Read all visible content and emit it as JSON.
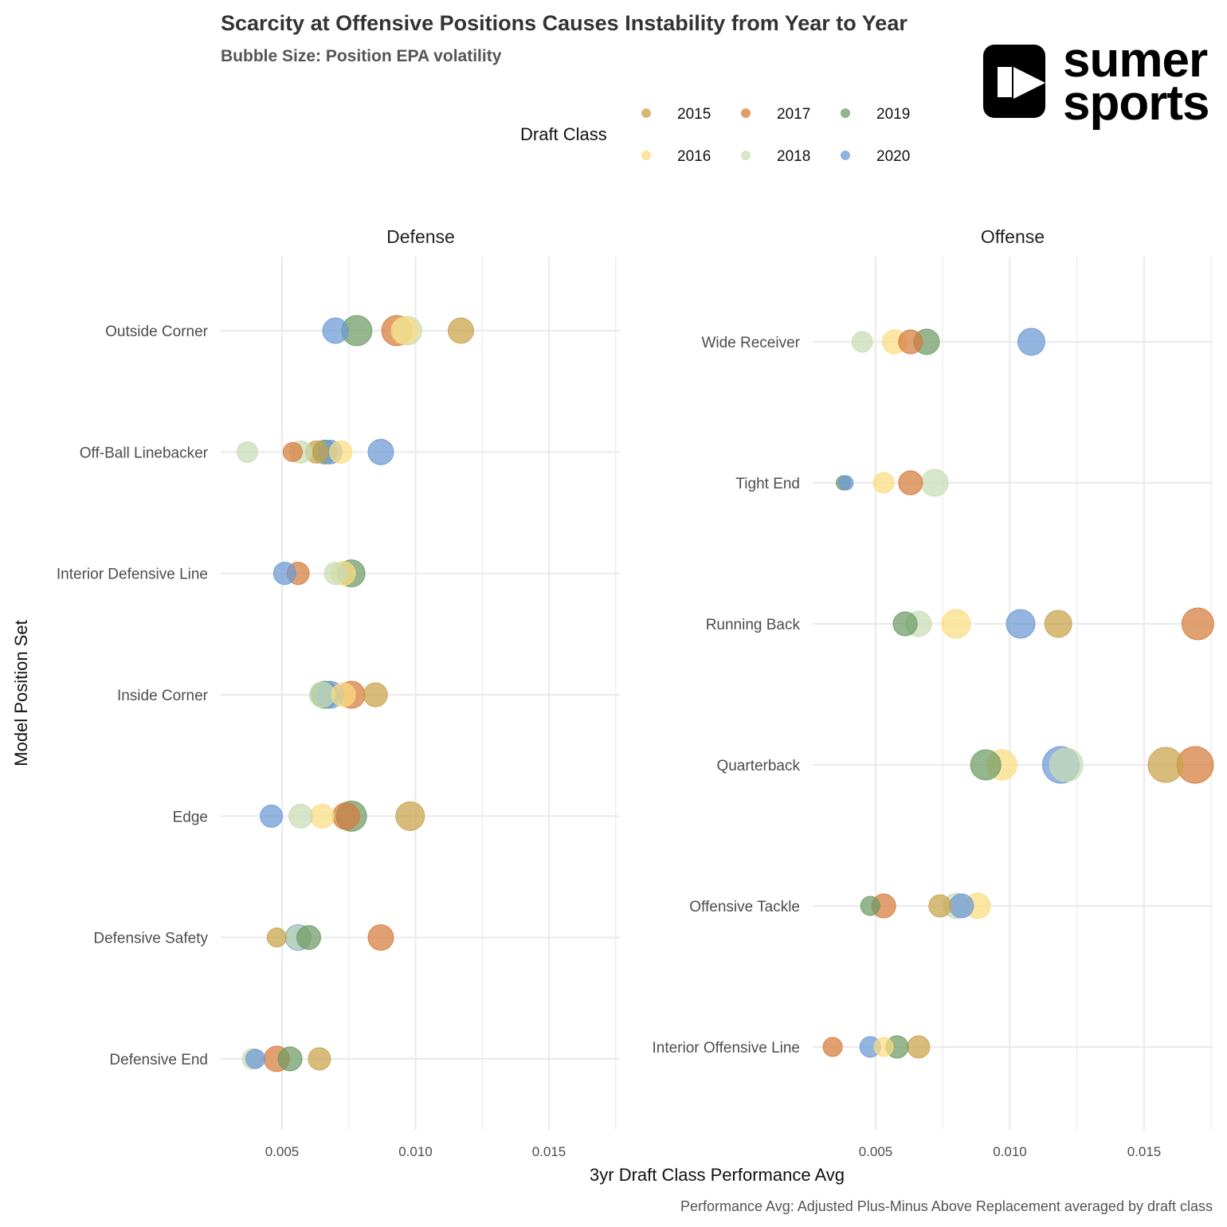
{
  "chart_data": {
    "type": "scatter",
    "title": "Scarcity at Offensive Positions Causes Instability from Year to Year",
    "subtitle": "Bubble Size: Position EPA volatility",
    "xlabel": "3yr Draft Class Performance Avg",
    "ylabel": "Model Position Set",
    "caption": "Performance Avg: Adjusted Plus-Minus Above Replacement averaged by draft class",
    "legend": {
      "title": "Draft Class",
      "placement": "top",
      "entries": [
        {
          "label": "2015",
          "color": "#C8A24A"
        },
        {
          "label": "2016",
          "color": "#FBDC7F"
        },
        {
          "label": "2017",
          "color": "#D67B3A"
        },
        {
          "label": "2018",
          "color": "#C8DDB4"
        },
        {
          "label": "2019",
          "color": "#6E9A64"
        },
        {
          "label": "2020",
          "color": "#6C98D6"
        }
      ]
    },
    "logo_text": [
      "sumer",
      "sports"
    ],
    "grid": true,
    "xlim": [
      0.0028,
      0.0177
    ],
    "x_ticks": [
      "0.005",
      "0.010",
      "0.015"
    ],
    "panels": [
      {
        "name": "Defense",
        "categories": [
          "Outside Corner",
          "Off-Ball Linebacker",
          "Interior Defensive Line",
          "Inside Corner",
          "Edge",
          "Defensive Safety",
          "Defensive End"
        ],
        "points": [
          {
            "cat": "Outside Corner",
            "year": "2015",
            "x": 0.0117,
            "size": 0.55
          },
          {
            "cat": "Outside Corner",
            "year": "2016",
            "x": 0.0096,
            "size": 0.6
          },
          {
            "cat": "Outside Corner",
            "year": "2017",
            "x": 0.0093,
            "size": 0.7
          },
          {
            "cat": "Outside Corner",
            "year": "2018",
            "x": 0.0097,
            "size": 0.65
          },
          {
            "cat": "Outside Corner",
            "year": "2019",
            "x": 0.0078,
            "size": 0.7
          },
          {
            "cat": "Outside Corner",
            "year": "2020",
            "x": 0.007,
            "size": 0.55
          },
          {
            "cat": "Off-Ball Linebacker",
            "year": "2015",
            "x": 0.0063,
            "size": 0.45
          },
          {
            "cat": "Off-Ball Linebacker",
            "year": "2016",
            "x": 0.0072,
            "size": 0.45
          },
          {
            "cat": "Off-Ball Linebacker",
            "year": "2017",
            "x": 0.0054,
            "size": 0.35
          },
          {
            "cat": "Off-Ball Linebacker",
            "year": "2018",
            "x": 0.0057,
            "size": 0.45
          },
          {
            "cat": "Off-Ball Linebacker",
            "year": "2018",
            "x": 0.0037,
            "size": 0.4
          },
          {
            "cat": "Off-Ball Linebacker",
            "year": "2019",
            "x": 0.0066,
            "size": 0.5
          },
          {
            "cat": "Off-Ball Linebacker",
            "year": "2020",
            "x": 0.0068,
            "size": 0.5
          },
          {
            "cat": "Off-Ball Linebacker",
            "year": "2020",
            "x": 0.0087,
            "size": 0.55
          },
          {
            "cat": "Interior Defensive Line",
            "year": "2016",
            "x": 0.0073,
            "size": 0.5
          },
          {
            "cat": "Interior Defensive Line",
            "year": "2017",
            "x": 0.0056,
            "size": 0.45
          },
          {
            "cat": "Interior Defensive Line",
            "year": "2018",
            "x": 0.007,
            "size": 0.45
          },
          {
            "cat": "Interior Defensive Line",
            "year": "2019",
            "x": 0.0076,
            "size": 0.6
          },
          {
            "cat": "Interior Defensive Line",
            "year": "2020",
            "x": 0.0051,
            "size": 0.45
          },
          {
            "cat": "Inside Corner",
            "year": "2015",
            "x": 0.0085,
            "size": 0.5
          },
          {
            "cat": "Inside Corner",
            "year": "2016",
            "x": 0.0073,
            "size": 0.5
          },
          {
            "cat": "Inside Corner",
            "year": "2017",
            "x": 0.0076,
            "size": 0.6
          },
          {
            "cat": "Inside Corner",
            "year": "2018",
            "x": 0.0065,
            "size": 0.55
          },
          {
            "cat": "Inside Corner",
            "year": "2019",
            "x": 0.0066,
            "size": 0.6
          },
          {
            "cat": "Inside Corner",
            "year": "2020",
            "x": 0.0068,
            "size": 0.6
          },
          {
            "cat": "Edge",
            "year": "2015",
            "x": 0.0098,
            "size": 0.65
          },
          {
            "cat": "Edge",
            "year": "2016",
            "x": 0.0065,
            "size": 0.5
          },
          {
            "cat": "Edge",
            "year": "2017",
            "x": 0.0074,
            "size": 0.6
          },
          {
            "cat": "Edge",
            "year": "2018",
            "x": 0.0057,
            "size": 0.5
          },
          {
            "cat": "Edge",
            "year": "2019",
            "x": 0.0076,
            "size": 0.7
          },
          {
            "cat": "Edge",
            "year": "2020",
            "x": 0.0046,
            "size": 0.45
          },
          {
            "cat": "Defensive Safety",
            "year": "2015",
            "x": 0.0048,
            "size": 0.35
          },
          {
            "cat": "Defensive Safety",
            "year": "2017",
            "x": 0.0087,
            "size": 0.55
          },
          {
            "cat": "Defensive Safety",
            "year": "2018",
            "x": 0.0056,
            "size": 0.5
          },
          {
            "cat": "Defensive Safety",
            "year": "2019",
            "x": 0.006,
            "size": 0.5
          },
          {
            "cat": "Defensive Safety",
            "year": "2020",
            "x": 0.0056,
            "size": 0.55
          },
          {
            "cat": "Defensive End",
            "year": "2015",
            "x": 0.0064,
            "size": 0.45
          },
          {
            "cat": "Defensive End",
            "year": "2017",
            "x": 0.0048,
            "size": 0.55
          },
          {
            "cat": "Defensive End",
            "year": "2018",
            "x": 0.0039,
            "size": 0.4
          },
          {
            "cat": "Defensive End",
            "year": "2019",
            "x": 0.0053,
            "size": 0.5
          },
          {
            "cat": "Defensive End",
            "year": "2020",
            "x": 0.004,
            "size": 0.35
          }
        ]
      },
      {
        "name": "Offense",
        "categories": [
          "Wide Receiver",
          "Tight End",
          "Running Back",
          "Quarterback",
          "Offensive Tackle",
          "Interior Offensive Line"
        ],
        "points": [
          {
            "cat": "Wide Receiver",
            "year": "2016",
            "x": 0.0057,
            "size": 0.5
          },
          {
            "cat": "Wide Receiver",
            "year": "2017",
            "x": 0.0063,
            "size": 0.5
          },
          {
            "cat": "Wide Receiver",
            "year": "2018",
            "x": 0.0045,
            "size": 0.4
          },
          {
            "cat": "Wide Receiver",
            "year": "2019",
            "x": 0.0069,
            "size": 0.55
          },
          {
            "cat": "Wide Receiver",
            "year": "2020",
            "x": 0.0108,
            "size": 0.6
          },
          {
            "cat": "Tight End",
            "year": "2016",
            "x": 0.0053,
            "size": 0.4
          },
          {
            "cat": "Tight End",
            "year": "2017",
            "x": 0.0063,
            "size": 0.5
          },
          {
            "cat": "Tight End",
            "year": "2018",
            "x": 0.0072,
            "size": 0.6
          },
          {
            "cat": "Tight End",
            "year": "2019",
            "x": 0.0038,
            "size": 0.2
          },
          {
            "cat": "Tight End",
            "year": "2020",
            "x": 0.0039,
            "size": 0.2
          },
          {
            "cat": "Running Back",
            "year": "2015",
            "x": 0.0118,
            "size": 0.6
          },
          {
            "cat": "Running Back",
            "year": "2016",
            "x": 0.008,
            "size": 0.65
          },
          {
            "cat": "Running Back",
            "year": "2017",
            "x": 0.017,
            "size": 0.75
          },
          {
            "cat": "Running Back",
            "year": "2018",
            "x": 0.0066,
            "size": 0.55
          },
          {
            "cat": "Running Back",
            "year": "2019",
            "x": 0.0061,
            "size": 0.5
          },
          {
            "cat": "Running Back",
            "year": "2020",
            "x": 0.0104,
            "size": 0.65
          },
          {
            "cat": "Quarterback",
            "year": "2015",
            "x": 0.0158,
            "size": 0.85
          },
          {
            "cat": "Quarterback",
            "year": "2016",
            "x": 0.0097,
            "size": 0.7
          },
          {
            "cat": "Quarterback",
            "year": "2017",
            "x": 0.0169,
            "size": 0.9
          },
          {
            "cat": "Quarterback",
            "year": "2018",
            "x": 0.0121,
            "size": 0.8
          },
          {
            "cat": "Quarterback",
            "year": "2019",
            "x": 0.0091,
            "size": 0.7
          },
          {
            "cat": "Quarterback",
            "year": "2020",
            "x": 0.0119,
            "size": 0.9
          },
          {
            "cat": "Offensive Tackle",
            "year": "2015",
            "x": 0.0074,
            "size": 0.45
          },
          {
            "cat": "Offensive Tackle",
            "year": "2016",
            "x": 0.0088,
            "size": 0.55
          },
          {
            "cat": "Offensive Tackle",
            "year": "2017",
            "x": 0.0053,
            "size": 0.5
          },
          {
            "cat": "Offensive Tackle",
            "year": "2018",
            "x": 0.008,
            "size": 0.55
          },
          {
            "cat": "Offensive Tackle",
            "year": "2019",
            "x": 0.0048,
            "size": 0.35
          },
          {
            "cat": "Offensive Tackle",
            "year": "2020",
            "x": 0.0082,
            "size": 0.5
          },
          {
            "cat": "Interior Offensive Line",
            "year": "2015",
            "x": 0.0066,
            "size": 0.45
          },
          {
            "cat": "Interior Offensive Line",
            "year": "2016",
            "x": 0.0053,
            "size": 0.35
          },
          {
            "cat": "Interior Offensive Line",
            "year": "2017",
            "x": 0.0034,
            "size": 0.35
          },
          {
            "cat": "Interior Offensive Line",
            "year": "2019",
            "x": 0.0058,
            "size": 0.45
          },
          {
            "cat": "Interior Offensive Line",
            "year": "2020",
            "x": 0.0048,
            "size": 0.4
          }
        ]
      }
    ]
  }
}
